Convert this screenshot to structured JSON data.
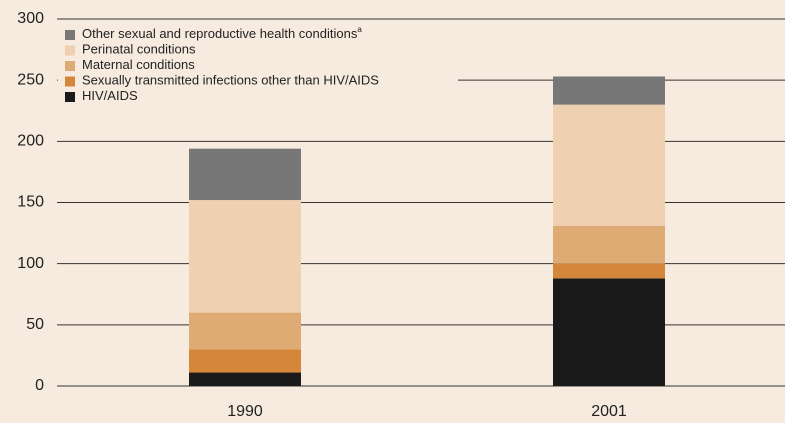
{
  "chart_data": {
    "type": "stacked_bar",
    "categories": [
      "1990",
      "2001"
    ],
    "series": [
      {
        "name": "HIV/AIDS",
        "color": "#1a1a1a",
        "values": [
          11,
          88
        ]
      },
      {
        "name": "Sexually transmitted infections other than HIV/AIDS",
        "color": "#d4873a",
        "values": [
          19,
          12
        ]
      },
      {
        "name": "Maternal conditions",
        "color": "#deab74",
        "values": [
          30,
          31
        ]
      },
      {
        "name": "Perinatal conditions",
        "color": "#efd0b0",
        "values": [
          92,
          99
        ]
      },
      {
        "name": "Other sexual and reproductive health conditions",
        "name_superscript": "a",
        "color": "#777777",
        "values": [
          42,
          23
        ]
      }
    ],
    "ylim": [
      0,
      300
    ],
    "yticks": [
      0,
      50,
      100,
      150,
      200,
      250,
      300
    ],
    "grid": true
  }
}
